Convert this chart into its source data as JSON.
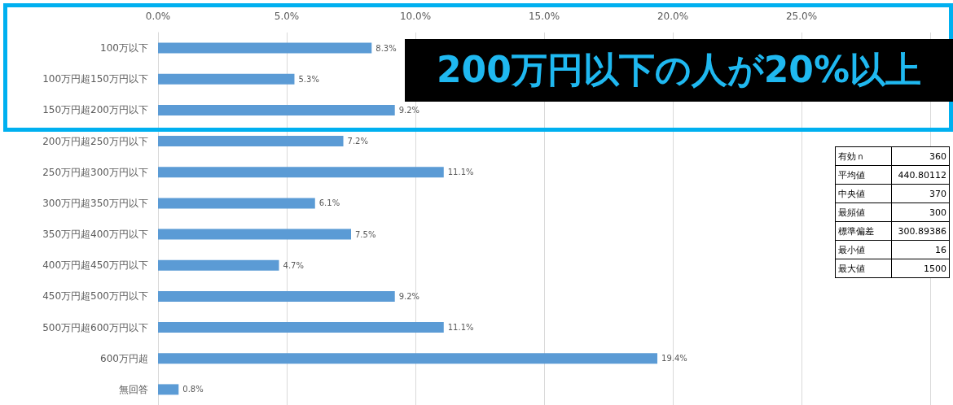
{
  "chart_data": {
    "type": "bar",
    "orientation": "horizontal",
    "categories": [
      "100万以下",
      "100万円超150万円以下",
      "150万円超200万円以下",
      "200万円超250万円以下",
      "250万円超300万円以下",
      "300万円超350万円以下",
      "350万円超400万円以下",
      "400万円超450万円以下",
      "450万円超500万円以下",
      "500万円超600万円以下",
      "600万円超",
      "無回答"
    ],
    "values": [
      8.3,
      5.3,
      9.2,
      7.2,
      11.1,
      6.1,
      7.5,
      4.7,
      9.2,
      11.1,
      19.4,
      0.8
    ],
    "value_labels": [
      "8.3%",
      "5.3%",
      "9.2%",
      "7.2%",
      "11.1%",
      "6.1%",
      "7.5%",
      "4.7%",
      "9.2%",
      "11.1%",
      "19.4%",
      "0.8%"
    ],
    "color": "#5b9bd5",
    "xlim": [
      0,
      30
    ],
    "xticks": [
      {
        "value": 0,
        "label": "0.0%"
      },
      {
        "value": 5,
        "label": "5.0%"
      },
      {
        "value": 10,
        "label": "10.0%"
      },
      {
        "value": 15,
        "label": "15.0%"
      },
      {
        "value": 20,
        "label": "20.0%"
      },
      {
        "value": 25,
        "label": "25.0%"
      },
      {
        "value": 30,
        "label": null
      }
    ],
    "grid": "x",
    "annotations": [
      "200万円以下の人が20%以上",
      "有効ｎ",
      "360",
      "平均値",
      "440.80112",
      "中央値",
      "370",
      "最頻値",
      "300",
      "標準偏差",
      "300.89386",
      "最小値",
      "16",
      "最大値",
      "1500"
    ]
  }
}
